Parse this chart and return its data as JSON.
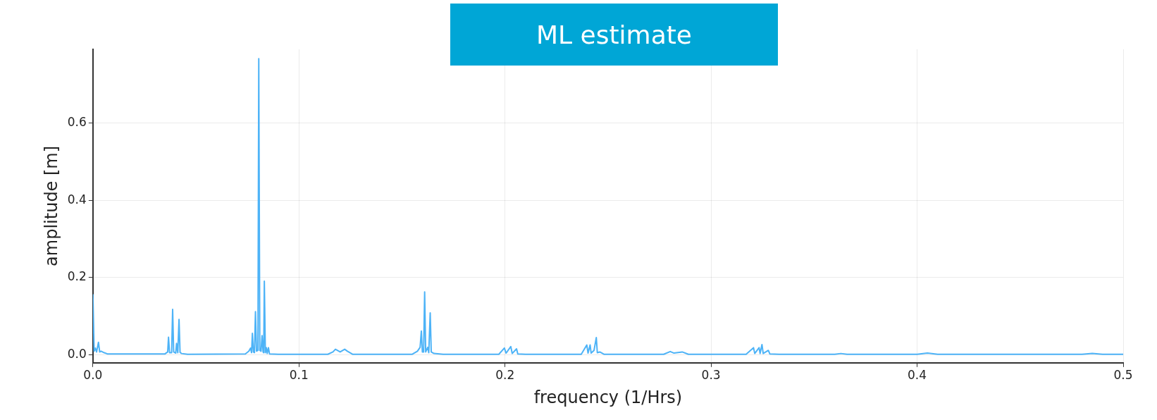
{
  "chart_data": {
    "type": "line",
    "title": "ML estimate",
    "xlabel": "frequency (1/Hrs)",
    "ylabel": "amplitude [m]",
    "x": [
      0,
      0.0006,
      0.0012,
      0.0018,
      0.0027,
      0.0033,
      0.004,
      0.0055,
      0.007,
      0.035,
      0.0363,
      0.0367,
      0.0372,
      0.0382,
      0.0387,
      0.0392,
      0.0402,
      0.0406,
      0.0412,
      0.0418,
      0.0423,
      0.043,
      0.046,
      0.074,
      0.0757,
      0.0765,
      0.077,
      0.0774,
      0.0779,
      0.0784,
      0.0789,
      0.0794,
      0.0801,
      0.0805,
      0.081,
      0.0816,
      0.0821,
      0.0826,
      0.0829,
      0.0832,
      0.0837,
      0.0842,
      0.0846,
      0.0852,
      0.0857,
      0.09,
      0.114,
      0.1165,
      0.1177,
      0.12,
      0.1222,
      0.1235,
      0.126,
      0.155,
      0.1575,
      0.1588,
      0.1594,
      0.1599,
      0.1605,
      0.161,
      0.1615,
      0.1625,
      0.163,
      0.1637,
      0.1642,
      0.1655,
      0.17,
      0.197,
      0.1997,
      0.2005,
      0.2012,
      0.2028,
      0.2035,
      0.2056,
      0.2062,
      0.21,
      0.237,
      0.2397,
      0.2403,
      0.2413,
      0.2418,
      0.2432,
      0.2443,
      0.2448,
      0.246,
      0.248,
      0.277,
      0.2802,
      0.282,
      0.286,
      0.289,
      0.317,
      0.3206,
      0.3212,
      0.3233,
      0.3238,
      0.3247,
      0.3253,
      0.3278,
      0.3285,
      0.333,
      0.36,
      0.363,
      0.366,
      0.4,
      0.405,
      0.41,
      0.48,
      0.485,
      0.49,
      0.5
    ],
    "series": [
      {
        "color": "#4db3f7",
        "values": [
          0.157,
          0.01,
          0.018,
          0.008,
          0.033,
          0.008,
          0.01,
          0.006,
          0.003,
          0.003,
          0.008,
          0.046,
          0.006,
          0.006,
          0.118,
          0.008,
          0.005,
          0.03,
          0.006,
          0.092,
          0.007,
          0.004,
          0.002,
          0.003,
          0.01,
          0.018,
          0.006,
          0.056,
          0.008,
          0.006,
          0.112,
          0.01,
          0.012,
          0.766,
          0.012,
          0.01,
          0.05,
          0.008,
          0.006,
          0.191,
          0.006,
          0.019,
          0.004,
          0.019,
          0.003,
          0.002,
          0.002,
          0.008,
          0.015,
          0.008,
          0.015,
          0.01,
          0.002,
          0.002,
          0.01,
          0.02,
          0.062,
          0.008,
          0.008,
          0.163,
          0.008,
          0.02,
          0.006,
          0.109,
          0.008,
          0.004,
          0.002,
          0.002,
          0.018,
          0.005,
          0.01,
          0.022,
          0.004,
          0.016,
          0.003,
          0.002,
          0.002,
          0.026,
          0.005,
          0.026,
          0.005,
          0.012,
          0.045,
          0.006,
          0.008,
          0.002,
          0.002,
          0.009,
          0.005,
          0.008,
          0.002,
          0.002,
          0.019,
          0.004,
          0.019,
          0.004,
          0.027,
          0.004,
          0.012,
          0.003,
          0.002,
          0.002,
          0.004,
          0.002,
          0.002,
          0.005,
          0.002,
          0.002,
          0.004,
          0.002,
          0.002
        ]
      }
    ],
    "xlim": [
      0,
      0.5
    ],
    "xticks": [
      {
        "value": 0,
        "label": "0.0"
      },
      0.1,
      0.2,
      0.3,
      0.4,
      0.5
    ],
    "ylim": [
      -0.02,
      0.79
    ],
    "yticks": [
      {
        "value": 0,
        "label": "0.0"
      },
      0.2,
      0.4,
      0.6
    ],
    "grid": true,
    "legend": false
  }
}
